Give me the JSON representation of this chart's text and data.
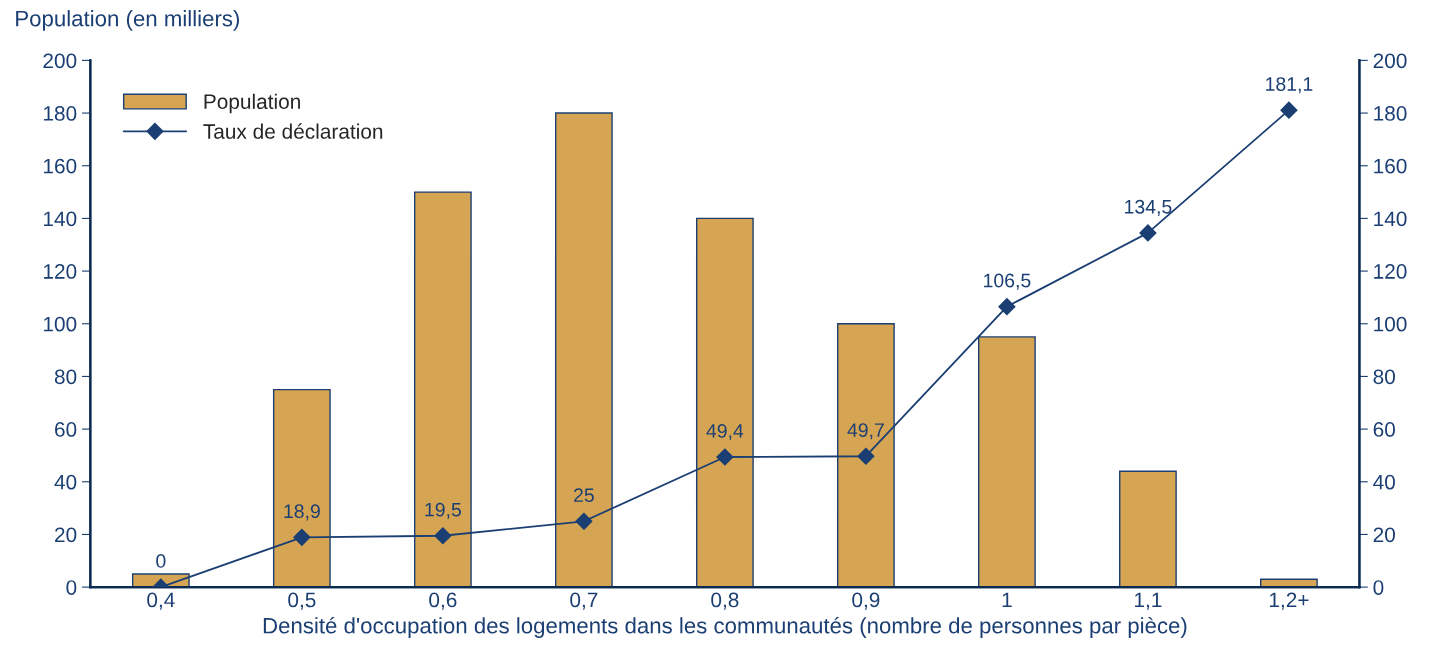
{
  "chart_data": {
    "type": "bar",
    "ylabel": "Population (en milliers)",
    "xlabel": "Densité d'occupation des logements dans les communautés (nombre de personnes par pièce)",
    "categories": [
      "0,4",
      "0,5",
      "0,6",
      "0,7",
      "0,8",
      "0,9",
      "1",
      "1,1",
      "1,2+"
    ],
    "series": [
      {
        "name": "Population",
        "color": "#d6a553",
        "values": [
          5,
          75,
          150,
          180,
          140,
          100,
          95,
          44,
          3
        ]
      },
      {
        "name": "Taux de déclaration",
        "type": "line",
        "axis": "y2",
        "color": "#1b3f73",
        "marker": "diamond",
        "values": [
          0,
          18.9,
          19.5,
          25,
          49.4,
          49.7,
          106.5,
          134.5,
          181.1
        ],
        "value_labels": [
          "0",
          "18,9",
          "19,5",
          "25",
          "49,4",
          "49,7",
          "106,5",
          "134,5",
          "181,1"
        ]
      }
    ],
    "ylim": [
      0,
      200
    ],
    "yticks": [
      0,
      20,
      40,
      60,
      80,
      100,
      120,
      140,
      160,
      180,
      200
    ],
    "y2lim": [
      0,
      200
    ],
    "y2ticks": [
      0,
      20,
      40,
      60,
      80,
      100,
      120,
      140,
      160,
      180,
      200
    ],
    "legend": "top left",
    "grid": false
  }
}
